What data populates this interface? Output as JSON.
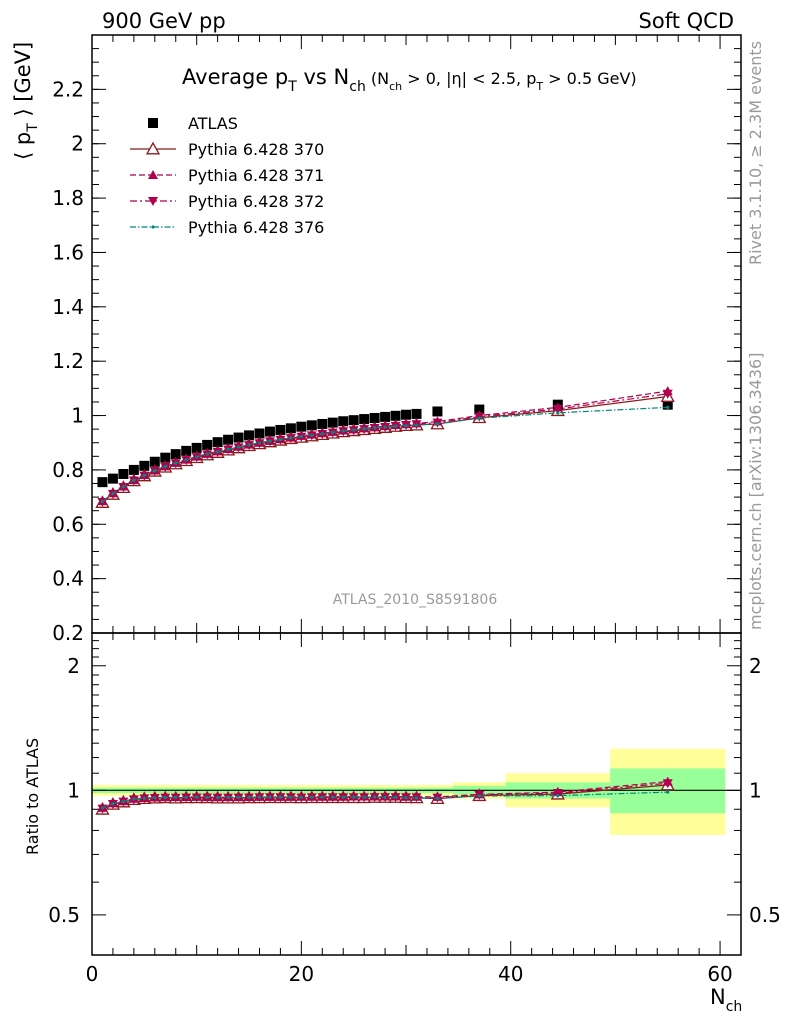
{
  "header": {
    "left": "900 GeV pp",
    "right": "Soft QCD"
  },
  "side_texts": {
    "rivet": "Rivet 3.1.10, ≥ 2.3M events",
    "mcplots": "mcplots.cern.ch [arXiv:1306.3436]"
  },
  "chart_data": [
    {
      "type": "scatter",
      "panel": "main",
      "title": {
        "main": "Average p",
        "main_sub": "T",
        "vs": " vs N",
        "vs_sub": "ch",
        "cut_open": " (N",
        "cut_open_sub": "ch",
        "cut_mid": " > 0, |η| < 2.5, p",
        "cut_mid_sub": "T",
        "cut_close": " > 0.5 GeV)"
      },
      "ylabel": {
        "prefix": "⟨ p",
        "sub": "T",
        "suffix": " ⟩ [GeV]"
      },
      "analysis_label": "ATLAS_2010_S8591806",
      "xlim": [
        0,
        62
      ],
      "ylim": [
        0.2,
        2.4
      ],
      "yticks": [
        0.2,
        0.4,
        0.6,
        0.8,
        1,
        1.2,
        1.4,
        1.6,
        1.8,
        2,
        2.2
      ],
      "ytick_labels": [
        "0.2",
        "0.4",
        "0.6",
        "0.8",
        "1",
        "1.2",
        "1.4",
        "1.6",
        "1.8",
        "2",
        "2.2"
      ],
      "legend_position": "top-left",
      "x": [
        1,
        2,
        3,
        4,
        5,
        6,
        7,
        8,
        9,
        10,
        11,
        12,
        13,
        14,
        15,
        16,
        17,
        18,
        19,
        20,
        21,
        22,
        23,
        24,
        25,
        26,
        27,
        28,
        29,
        30,
        31,
        33,
        37,
        44.5,
        55
      ],
      "series": [
        {
          "name": "ATLAS",
          "color": "#000000",
          "marker": "square",
          "values": [
            0.755,
            0.768,
            0.785,
            0.8,
            0.815,
            0.83,
            0.845,
            0.858,
            0.87,
            0.881,
            0.892,
            0.902,
            0.911,
            0.919,
            0.927,
            0.934,
            0.941,
            0.947,
            0.953,
            0.959,
            0.964,
            0.969,
            0.974,
            0.979,
            0.983,
            0.987,
            0.991,
            0.995,
            0.999,
            1.003,
            1.006,
            1.015,
            1.022,
            1.04,
            1.04
          ]
        },
        {
          "name": "Pythia 6.428 370",
          "color": "#8b1a1a",
          "marker": "triangle-open",
          "dash": "",
          "values": [
            0.68,
            0.71,
            0.735,
            0.76,
            0.778,
            0.795,
            0.81,
            0.822,
            0.834,
            0.845,
            0.855,
            0.864,
            0.873,
            0.881,
            0.889,
            0.896,
            0.903,
            0.909,
            0.915,
            0.92,
            0.925,
            0.93,
            0.935,
            0.94,
            0.944,
            0.948,
            0.952,
            0.956,
            0.96,
            0.963,
            0.965,
            0.969,
            0.992,
            1.018,
            1.07
          ]
        },
        {
          "name": "Pythia 6.428 371",
          "color": "#b0004f",
          "marker": "triangle-up",
          "dash": "6,3",
          "values": [
            0.685,
            0.714,
            0.739,
            0.763,
            0.781,
            0.798,
            0.813,
            0.826,
            0.838,
            0.849,
            0.859,
            0.868,
            0.877,
            0.885,
            0.893,
            0.9,
            0.907,
            0.913,
            0.919,
            0.925,
            0.93,
            0.935,
            0.94,
            0.945,
            0.949,
            0.953,
            0.957,
            0.961,
            0.965,
            0.968,
            0.971,
            0.978,
            1.0,
            1.03,
            1.09
          ]
        },
        {
          "name": "Pythia 6.428 372",
          "color": "#b0004f",
          "marker": "triangle-down",
          "dash": "7,3,2,3",
          "values": [
            0.682,
            0.712,
            0.737,
            0.761,
            0.779,
            0.796,
            0.811,
            0.824,
            0.836,
            0.847,
            0.857,
            0.866,
            0.875,
            0.883,
            0.891,
            0.898,
            0.905,
            0.911,
            0.917,
            0.922,
            0.927,
            0.932,
            0.937,
            0.942,
            0.946,
            0.95,
            0.954,
            0.958,
            0.962,
            0.965,
            0.968,
            0.974,
            0.996,
            1.024,
            1.08
          ]
        },
        {
          "name": "Pythia 6.428 376",
          "color": "#00897b",
          "marker": "dot",
          "dash": "6,2,1.5,2",
          "values": [
            0.684,
            0.713,
            0.738,
            0.762,
            0.78,
            0.797,
            0.812,
            0.825,
            0.837,
            0.848,
            0.858,
            0.867,
            0.876,
            0.884,
            0.892,
            0.899,
            0.906,
            0.912,
            0.918,
            0.923,
            0.928,
            0.933,
            0.938,
            0.943,
            0.947,
            0.951,
            0.955,
            0.958,
            0.961,
            0.963,
            0.965,
            0.97,
            0.99,
            1.01,
            1.03
          ]
        }
      ]
    },
    {
      "type": "line",
      "panel": "ratio",
      "ylabel": "Ratio to ATLAS",
      "xlabel": {
        "base": "N",
        "sub": "ch"
      },
      "xlim": [
        0,
        62
      ],
      "ylim": [
        0.4,
        2.4
      ],
      "log_y": true,
      "xticks": [
        0,
        20,
        40,
        60
      ],
      "xtick_labels": [
        "0",
        "20",
        "40",
        "60"
      ],
      "yticks": [
        0.5,
        1,
        2
      ],
      "ytick_labels": [
        "0.5",
        "1",
        "2"
      ],
      "bands": [
        {
          "x0": 0,
          "x1": 34.5,
          "inner": [
            0.985,
            1.015
          ],
          "outer": [
            0.97,
            1.03
          ]
        },
        {
          "x0": 34.5,
          "x1": 39.5,
          "inner": [
            0.975,
            1.025
          ],
          "outer": [
            0.955,
            1.045
          ]
        },
        {
          "x0": 39.5,
          "x1": 49.5,
          "inner": [
            0.955,
            1.045
          ],
          "outer": [
            0.91,
            1.1
          ]
        },
        {
          "x0": 49.5,
          "x1": 60.5,
          "inner": [
            0.88,
            1.13
          ],
          "outer": [
            0.78,
            1.26
          ]
        }
      ],
      "x": [
        1,
        2,
        3,
        4,
        5,
        6,
        7,
        8,
        9,
        10,
        11,
        12,
        13,
        14,
        15,
        16,
        17,
        18,
        19,
        20,
        21,
        22,
        23,
        24,
        25,
        26,
        27,
        28,
        29,
        30,
        31,
        33,
        37,
        44.5,
        55
      ],
      "series": [
        {
          "name": "Pythia 6.428 370",
          "color": "#8b1a1a",
          "marker": "triangle-open",
          "dash": "",
          "values": [
            0.9,
            0.925,
            0.937,
            0.95,
            0.955,
            0.958,
            0.959,
            0.958,
            0.959,
            0.959,
            0.959,
            0.958,
            0.958,
            0.958,
            0.959,
            0.959,
            0.96,
            0.96,
            0.96,
            0.959,
            0.96,
            0.96,
            0.96,
            0.96,
            0.96,
            0.96,
            0.961,
            0.961,
            0.961,
            0.96,
            0.959,
            0.955,
            0.971,
            0.979,
            1.03
          ]
        },
        {
          "name": "Pythia 6.428 371",
          "color": "#b0004f",
          "marker": "triangle-up",
          "dash": "6,3",
          "values": [
            0.907,
            0.93,
            0.941,
            0.954,
            0.958,
            0.961,
            0.962,
            0.963,
            0.963,
            0.964,
            0.963,
            0.962,
            0.963,
            0.963,
            0.963,
            0.964,
            0.964,
            0.964,
            0.964,
            0.965,
            0.965,
            0.965,
            0.965,
            0.965,
            0.966,
            0.966,
            0.966,
            0.966,
            0.966,
            0.965,
            0.965,
            0.964,
            0.978,
            0.99,
            1.05
          ]
        },
        {
          "name": "Pythia 6.428 372",
          "color": "#b0004f",
          "marker": "triangle-down",
          "dash": "7,3,2,3",
          "values": [
            0.903,
            0.927,
            0.939,
            0.951,
            0.956,
            0.959,
            0.96,
            0.96,
            0.961,
            0.961,
            0.961,
            0.96,
            0.96,
            0.961,
            0.961,
            0.962,
            0.962,
            0.962,
            0.962,
            0.961,
            0.962,
            0.962,
            0.962,
            0.962,
            0.962,
            0.962,
            0.963,
            0.963,
            0.963,
            0.962,
            0.962,
            0.96,
            0.975,
            0.985,
            1.04
          ]
        },
        {
          "name": "Pythia 6.428 376",
          "color": "#00897b",
          "marker": "dot",
          "dash": "6,2,1.5,2",
          "values": [
            0.906,
            0.928,
            0.94,
            0.953,
            0.957,
            0.96,
            0.961,
            0.962,
            0.962,
            0.963,
            0.962,
            0.961,
            0.962,
            0.962,
            0.962,
            0.963,
            0.963,
            0.963,
            0.963,
            0.962,
            0.963,
            0.963,
            0.963,
            0.963,
            0.963,
            0.963,
            0.964,
            0.962,
            0.962,
            0.96,
            0.959,
            0.956,
            0.969,
            0.971,
            0.99
          ]
        }
      ]
    }
  ]
}
